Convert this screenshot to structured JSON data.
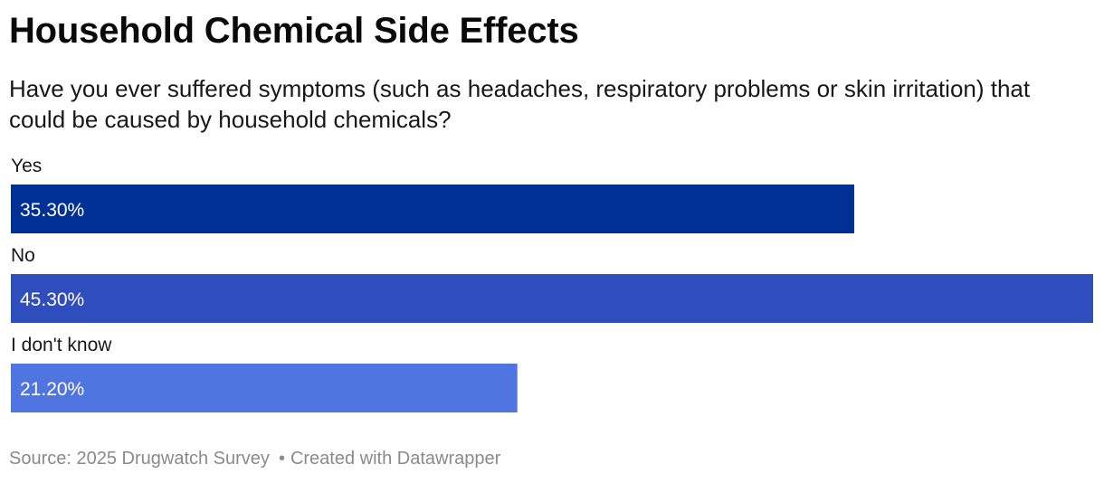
{
  "header": {
    "title": "Household Chemical Side Effects",
    "subtitle": "Have you ever suffered symptoms (such as headaches, respiratory problems or skin irritation) that could be caused by household chemicals?"
  },
  "chart_data": {
    "type": "bar",
    "orientation": "horizontal",
    "categories": [
      "Yes",
      "No",
      "I don't know"
    ],
    "values": [
      35.3,
      45.3,
      21.2
    ],
    "value_labels": [
      "35.30%",
      "45.30%",
      "21.20%"
    ],
    "colors": [
      "#003094",
      "#304dbd",
      "#5175e0"
    ],
    "xlim": [
      0,
      45.3
    ],
    "grid": false,
    "legend": "none"
  },
  "footer": {
    "source": "Source: 2025 Drugwatch Survey",
    "separator": "•",
    "credit": "Created with Datawrapper"
  }
}
